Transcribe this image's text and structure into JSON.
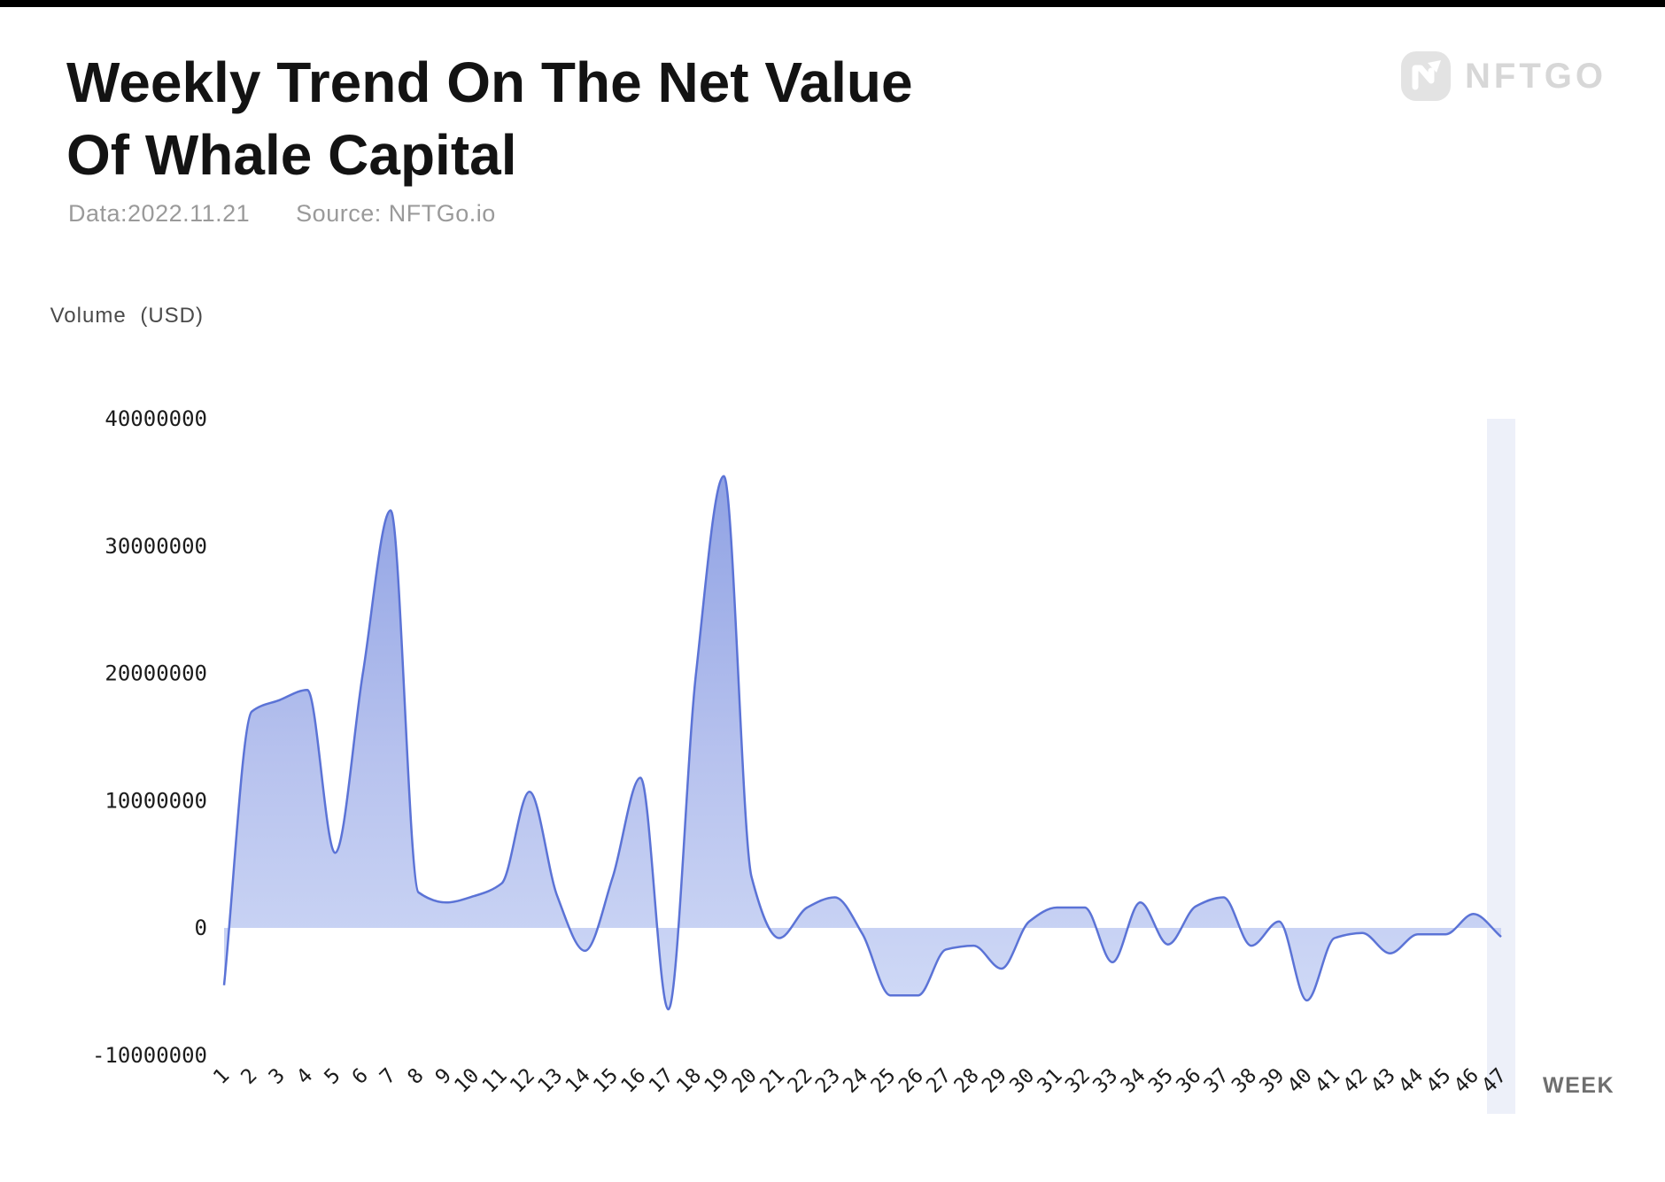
{
  "page": {
    "background": "#ffffff",
    "top_bar_color": "#000000"
  },
  "header": {
    "title_line1": "Weekly Trend On The Net Value",
    "title_line2": "Of Whale Capital",
    "date_label": "Data:2022.11.21",
    "source_label": "Source: NFTGo.io"
  },
  "logo": {
    "text": "NFTGO"
  },
  "chart_data": {
    "type": "area",
    "title": "Weekly Trend On The Net Value Of Whale Capital",
    "xlabel": "WEEK",
    "ylabel": "Volume (USD)",
    "smooth": true,
    "grid": false,
    "legend_position": "none",
    "x": [
      1,
      2,
      3,
      4,
      5,
      6,
      7,
      8,
      9,
      10,
      11,
      12,
      13,
      14,
      15,
      16,
      17,
      18,
      19,
      20,
      21,
      22,
      23,
      24,
      25,
      26,
      27,
      28,
      29,
      30,
      31,
      32,
      33,
      34,
      35,
      36,
      37,
      38,
      39,
      40,
      41,
      42,
      43,
      44,
      45,
      46,
      47
    ],
    "values": [
      -4500000,
      17000000,
      17900000,
      18700000,
      5900000,
      20000000,
      32800000,
      2800000,
      2000000,
      2500000,
      3500000,
      10700000,
      2500000,
      -1800000,
      4000000,
      11800000,
      -6400000,
      20000000,
      35500000,
      4000000,
      -800000,
      1600000,
      2400000,
      -500000,
      -5300000,
      -5300000,
      -1700000,
      -1400000,
      -3200000,
      500000,
      1600000,
      1600000,
      -2700000,
      2000000,
      -1300000,
      1700000,
      2400000,
      -1400000,
      500000,
      -5700000,
      -800000,
      -400000,
      -2000000,
      -500000,
      -500000,
      1100000,
      -700000
    ],
    "ylim": [
      -10000000,
      40000000
    ],
    "yticks": [
      40000000,
      30000000,
      20000000,
      10000000,
      0,
      -10000000
    ],
    "ytick_labels": [
      "40000000",
      "30000000",
      "20000000",
      "10000000",
      "0",
      "-10000000"
    ],
    "highlight_x": 47,
    "colors": {
      "line": "#5b73d6",
      "fill_top": "#8da0e3",
      "fill_mid": "#b7c2ee",
      "fill_bottom": "#cfd9f6",
      "highlight_band": "#edf0f9"
    }
  }
}
